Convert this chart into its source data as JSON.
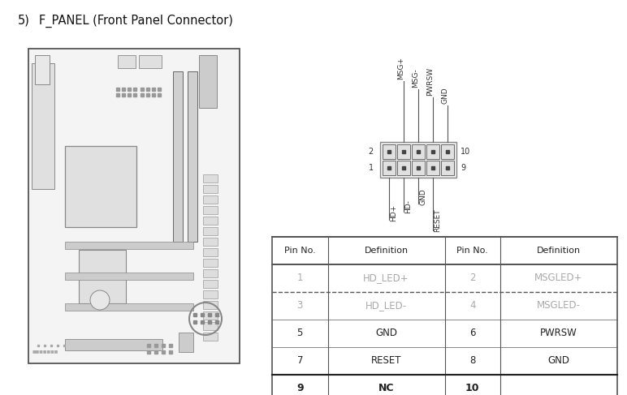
{
  "title_number": "5)",
  "title_text": "F_PANEL (Front Panel Connector)",
  "title_fontsize": 10.5,
  "connector_pins_top": [
    "MSG+",
    "MSG-",
    "PWRSW",
    "GND"
  ],
  "connector_pins_bottom": [
    "HD+",
    "HD-",
    "GND",
    "RESET"
  ],
  "table_headers": [
    "Pin No.",
    "Definition",
    "Pin No.",
    "Definition"
  ],
  "table_rows": [
    [
      "1",
      "HD_LED+",
      "2",
      "MSGLED+"
    ],
    [
      "3",
      "HD_LED-",
      "4",
      "MSGLED-"
    ],
    [
      "5",
      "GND",
      "6",
      "PWRSW"
    ],
    [
      "7",
      "RESET",
      "8",
      "GND"
    ],
    [
      "9",
      "NC",
      "10",
      ""
    ]
  ],
  "table_gray_rows": [
    0,
    1
  ],
  "table_bold_row": 4,
  "text_color_normal": "#222222",
  "text_color_gray": "#aaaaaa",
  "bg_color": "#ffffff",
  "fig_width": 7.72,
  "fig_height": 4.87,
  "dpi": 100
}
